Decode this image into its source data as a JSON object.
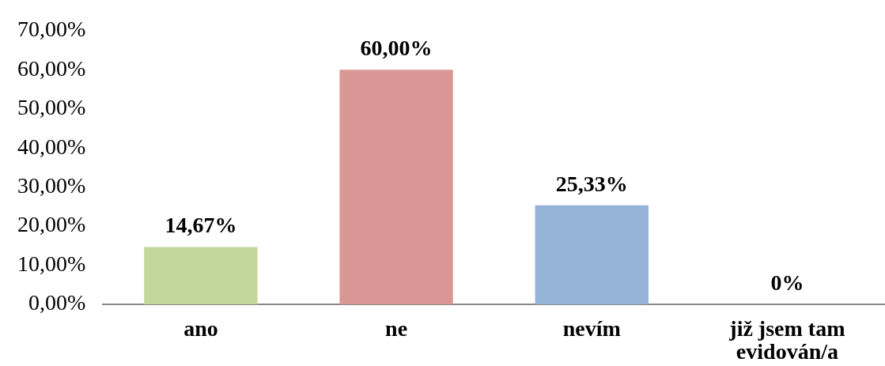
{
  "chart_data": {
    "type": "bar",
    "categories": [
      "ano",
      "ne",
      "nevím",
      "již jsem tam evidován/a"
    ],
    "values": [
      14.67,
      60,
      25.33,
      0
    ],
    "colors": [
      "#c3d69b",
      "#d99694",
      "#95b3d7",
      "#b3a2c7"
    ],
    "value_labels": [
      "14,67%",
      "60,00%",
      "25,33%",
      "0%"
    ],
    "ylim": [
      0,
      70
    ],
    "yticks": [
      {
        "value": 0,
        "label": "0,00%"
      },
      {
        "value": 10,
        "label": "10,00%"
      },
      {
        "value": 20,
        "label": "20,00%"
      },
      {
        "value": 30,
        "label": "30,00%"
      },
      {
        "value": 40,
        "label": "40,00%"
      },
      {
        "value": 50,
        "label": "50,00%"
      },
      {
        "value": 60,
        "label": "60,00%"
      },
      {
        "value": 70,
        "label": "70,00%"
      }
    ]
  }
}
